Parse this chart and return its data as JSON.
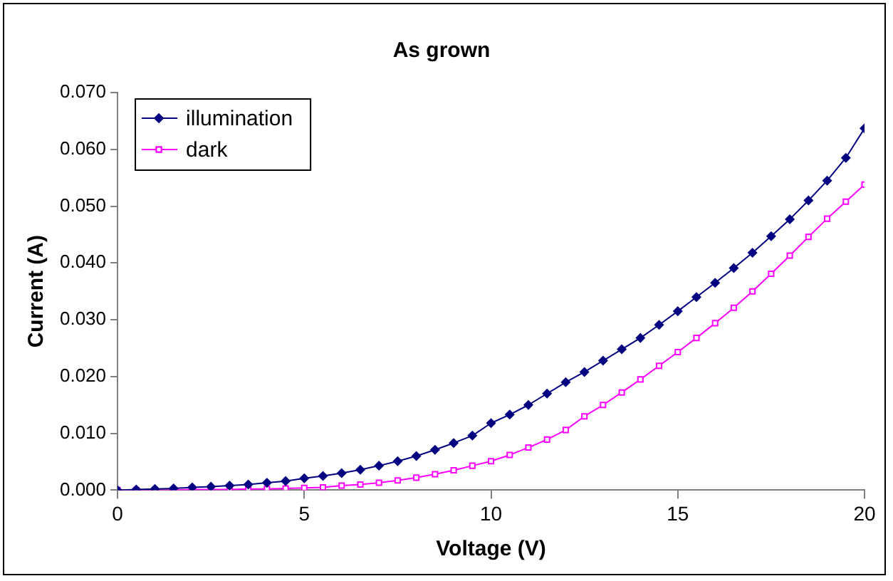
{
  "chart_data": {
    "type": "line",
    "title": "As grown",
    "xlabel": "Voltage (V)",
    "ylabel": "Current (A)",
    "x": [
      0,
      0.5,
      1,
      1.5,
      2,
      2.5,
      3,
      3.5,
      4,
      4.5,
      5,
      5.5,
      6,
      6.5,
      7,
      7.5,
      8,
      8.5,
      9,
      9.5,
      10,
      10.5,
      11,
      11.5,
      12,
      12.5,
      13,
      13.5,
      14,
      14.5,
      15,
      15.5,
      16,
      16.5,
      17,
      17.5,
      18,
      18.5,
      19,
      19.5,
      20
    ],
    "series": [
      {
        "name": "illumination",
        "color": "#000080",
        "marker": "diamond",
        "values": [
          0,
          0.0001,
          0.0002,
          0.0003,
          0.0005,
          0.0006,
          0.0008,
          0.001,
          0.0013,
          0.0016,
          0.0021,
          0.0025,
          0.003,
          0.0036,
          0.0043,
          0.0051,
          0.006,
          0.0071,
          0.0083,
          0.0096,
          0.0118,
          0.0133,
          0.015,
          0.017,
          0.019,
          0.0208,
          0.0228,
          0.0248,
          0.0268,
          0.0291,
          0.0315,
          0.034,
          0.0365,
          0.0391,
          0.0418,
          0.0447,
          0.0477,
          0.051,
          0.0545,
          0.0585,
          0.0637
        ]
      },
      {
        "name": "dark",
        "color": "#ff00ff",
        "marker": "square",
        "values": [
          0,
          0,
          0,
          0,
          0.0001,
          0.0001,
          0.0001,
          0.0002,
          0.0002,
          0.0003,
          0.0004,
          0.0005,
          0.0008,
          0.001,
          0.0013,
          0.0017,
          0.0022,
          0.0028,
          0.0035,
          0.0043,
          0.0051,
          0.0062,
          0.0075,
          0.0089,
          0.0106,
          0.013,
          0.015,
          0.0172,
          0.0195,
          0.0219,
          0.0243,
          0.0268,
          0.0294,
          0.0321,
          0.035,
          0.0381,
          0.0413,
          0.0446,
          0.0478,
          0.0508,
          0.0538
        ]
      }
    ],
    "xlim": [
      0,
      20
    ],
    "xticks": [
      0,
      5,
      10,
      15,
      20
    ],
    "ylim": [
      0,
      0.07
    ],
    "yticks": [
      {
        "value": 0,
        "label": "0.000"
      },
      {
        "value": 0.01,
        "label": "0.010"
      },
      {
        "value": 0.02,
        "label": "0.020"
      },
      {
        "value": 0.03,
        "label": "0.030"
      },
      {
        "value": 0.04,
        "label": "0.040"
      },
      {
        "value": 0.05,
        "label": "0.050"
      },
      {
        "value": 0.06,
        "label": "0.060"
      },
      {
        "value": 0.07,
        "label": "0.070"
      }
    ],
    "grid": false,
    "legend": "top left",
    "line_style": "solid"
  }
}
